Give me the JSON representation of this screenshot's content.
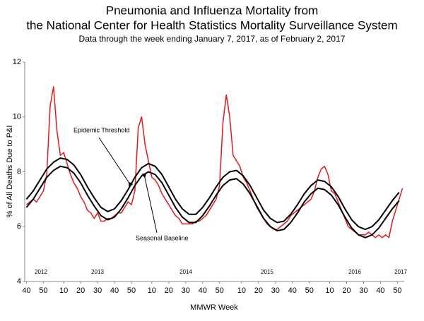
{
  "chart_data": {
    "type": "line",
    "title": "Pneumonia and Influenza Mortality from",
    "title_line2": "the National Center for Health Statistics Mortality Surveillance System",
    "subtitle": "Data through the week ending January 7, 2017, as of February 2, 2017",
    "ylabel": "% of All Deaths Due to P&I",
    "xlabel": "MMWR Week",
    "year_labels": [
      "2012",
      "2013",
      "2014",
      "2015",
      "2016",
      "2017"
    ],
    "xlim": [
      -1,
      223
    ],
    "ylim": [
      4,
      12
    ],
    "yticks": [
      4,
      6,
      8,
      10,
      12
    ],
    "xticks": [
      {
        "value": 0,
        "label": "40"
      },
      {
        "value": 10,
        "label": "50"
      },
      {
        "value": 22,
        "label": "10"
      },
      {
        "value": 32,
        "label": "20"
      },
      {
        "value": 42,
        "label": "30"
      },
      {
        "value": 52,
        "label": "40"
      },
      {
        "value": 62,
        "label": "50"
      },
      {
        "value": 74,
        "label": "10"
      },
      {
        "value": 84,
        "label": "20"
      },
      {
        "value": 94,
        "label": "30"
      },
      {
        "value": 104,
        "label": "40"
      },
      {
        "value": 114,
        "label": "50"
      },
      {
        "value": 127,
        "label": "10"
      },
      {
        "value": 137,
        "label": "20"
      },
      {
        "value": 147,
        "label": "30"
      },
      {
        "value": 157,
        "label": "40"
      },
      {
        "value": 167,
        "label": "50"
      },
      {
        "value": 179,
        "label": "10"
      },
      {
        "value": 189,
        "label": "20"
      },
      {
        "value": 199,
        "label": "30"
      },
      {
        "value": 209,
        "label": "40"
      },
      {
        "value": 219,
        "label": "50"
      }
    ],
    "grid": false,
    "series": [
      {
        "color": "#e41a1c",
        "x": [
          0,
          2,
          4,
          6,
          8,
          10,
          12,
          14,
          16,
          18,
          20,
          22,
          24,
          26,
          28,
          30,
          32,
          34,
          36,
          38,
          40,
          42,
          44,
          46,
          48,
          50,
          52,
          54,
          56,
          58,
          60,
          62,
          64,
          66,
          68,
          70,
          72,
          74,
          76,
          78,
          80,
          82,
          84,
          86,
          88,
          90,
          92,
          94,
          96,
          98,
          100,
          102,
          104,
          106,
          108,
          110,
          112,
          114,
          116,
          118,
          120,
          122,
          124,
          126,
          128,
          130,
          132,
          134,
          136,
          138,
          140,
          142,
          144,
          146,
          148,
          150,
          152,
          154,
          156,
          158,
          160,
          162,
          164,
          166,
          168,
          170,
          172,
          174,
          176,
          178,
          180,
          182,
          184,
          186,
          188,
          190,
          192,
          194,
          196,
          198,
          200,
          202,
          204,
          206,
          208,
          210,
          212,
          214,
          216,
          218,
          220,
          222
        ],
        "values": [
          6.8,
          6.9,
          7.0,
          6.9,
          7.1,
          7.3,
          7.9,
          10.4,
          11.1,
          9.5,
          8.6,
          8.7,
          8.3,
          7.9,
          7.6,
          7.4,
          7.1,
          6.9,
          6.6,
          6.5,
          6.3,
          6.5,
          6.2,
          6.2,
          6.3,
          6.3,
          6.4,
          6.5,
          6.5,
          6.7,
          6.9,
          6.8,
          7.3,
          9.6,
          10.0,
          9.0,
          8.4,
          7.8,
          7.7,
          7.5,
          7.2,
          7.0,
          6.8,
          6.6,
          6.4,
          6.3,
          6.1,
          6.1,
          6.1,
          6.1,
          6.2,
          6.2,
          6.3,
          6.4,
          6.6,
          6.8,
          7.0,
          7.5,
          9.8,
          10.8,
          10.0,
          8.6,
          8.4,
          8.2,
          7.8,
          7.6,
          7.3,
          7.0,
          6.7,
          6.5,
          6.3,
          6.1,
          6.0,
          5.9,
          5.9,
          6.0,
          6.1,
          6.2,
          6.4,
          6.5,
          6.6,
          6.7,
          6.8,
          6.9,
          7.0,
          7.3,
          7.8,
          8.1,
          8.2,
          7.9,
          7.3,
          7.2,
          6.9,
          6.6,
          6.3,
          6.0,
          5.9,
          5.8,
          5.7,
          5.7,
          5.7,
          5.8,
          5.7,
          5.6,
          5.7,
          5.6,
          5.7,
          5.6,
          6.2,
          6.6,
          7.0,
          7.4
        ]
      },
      {
        "name": "Epidemic Threshold",
        "color": "#000000",
        "x": [
          0,
          4,
          8,
          12,
          16,
          20,
          24,
          28,
          32,
          36,
          40,
          44,
          48,
          52,
          56,
          60,
          64,
          68,
          72,
          76,
          80,
          84,
          88,
          92,
          96,
          100,
          104,
          108,
          112,
          116,
          120,
          124,
          128,
          132,
          136,
          140,
          144,
          148,
          152,
          156,
          160,
          164,
          168,
          172,
          176,
          180,
          184,
          188,
          192,
          196,
          200,
          204,
          208,
          212,
          216,
          220
        ],
        "values": [
          7.0,
          7.3,
          7.7,
          8.1,
          8.35,
          8.5,
          8.45,
          8.25,
          7.9,
          7.45,
          7.05,
          6.7,
          6.55,
          6.65,
          6.95,
          7.35,
          7.8,
          8.15,
          8.3,
          8.2,
          7.9,
          7.45,
          7.0,
          6.65,
          6.45,
          6.45,
          6.7,
          7.05,
          7.45,
          7.8,
          8.0,
          8.05,
          7.85,
          7.5,
          7.05,
          6.6,
          6.3,
          6.15,
          6.2,
          6.45,
          6.8,
          7.2,
          7.5,
          7.7,
          7.65,
          7.45,
          7.1,
          6.65,
          6.25,
          6.0,
          5.9,
          6.0,
          6.25,
          6.6,
          6.95,
          7.25
        ]
      },
      {
        "name": "Seasonal Baseline",
        "color": "#000000",
        "x": [
          0,
          4,
          8,
          12,
          16,
          20,
          24,
          28,
          32,
          36,
          40,
          44,
          48,
          52,
          56,
          60,
          64,
          68,
          72,
          76,
          80,
          84,
          88,
          92,
          96,
          100,
          104,
          108,
          112,
          116,
          120,
          124,
          128,
          132,
          136,
          140,
          144,
          148,
          152,
          156,
          160,
          164,
          168,
          172,
          176,
          180,
          184,
          188,
          192,
          196,
          200,
          204,
          208,
          212,
          216,
          220
        ],
        "values": [
          6.7,
          7.0,
          7.4,
          7.8,
          8.05,
          8.2,
          8.15,
          7.95,
          7.6,
          7.15,
          6.75,
          6.4,
          6.25,
          6.35,
          6.65,
          7.05,
          7.5,
          7.85,
          8.0,
          7.9,
          7.6,
          7.15,
          6.7,
          6.35,
          6.15,
          6.15,
          6.4,
          6.75,
          7.15,
          7.5,
          7.7,
          7.75,
          7.55,
          7.2,
          6.75,
          6.3,
          6.0,
          5.85,
          5.9,
          6.15,
          6.5,
          6.9,
          7.2,
          7.4,
          7.35,
          7.15,
          6.8,
          6.35,
          5.95,
          5.7,
          5.6,
          5.7,
          5.95,
          6.3,
          6.65,
          6.95
        ]
      }
    ]
  }
}
